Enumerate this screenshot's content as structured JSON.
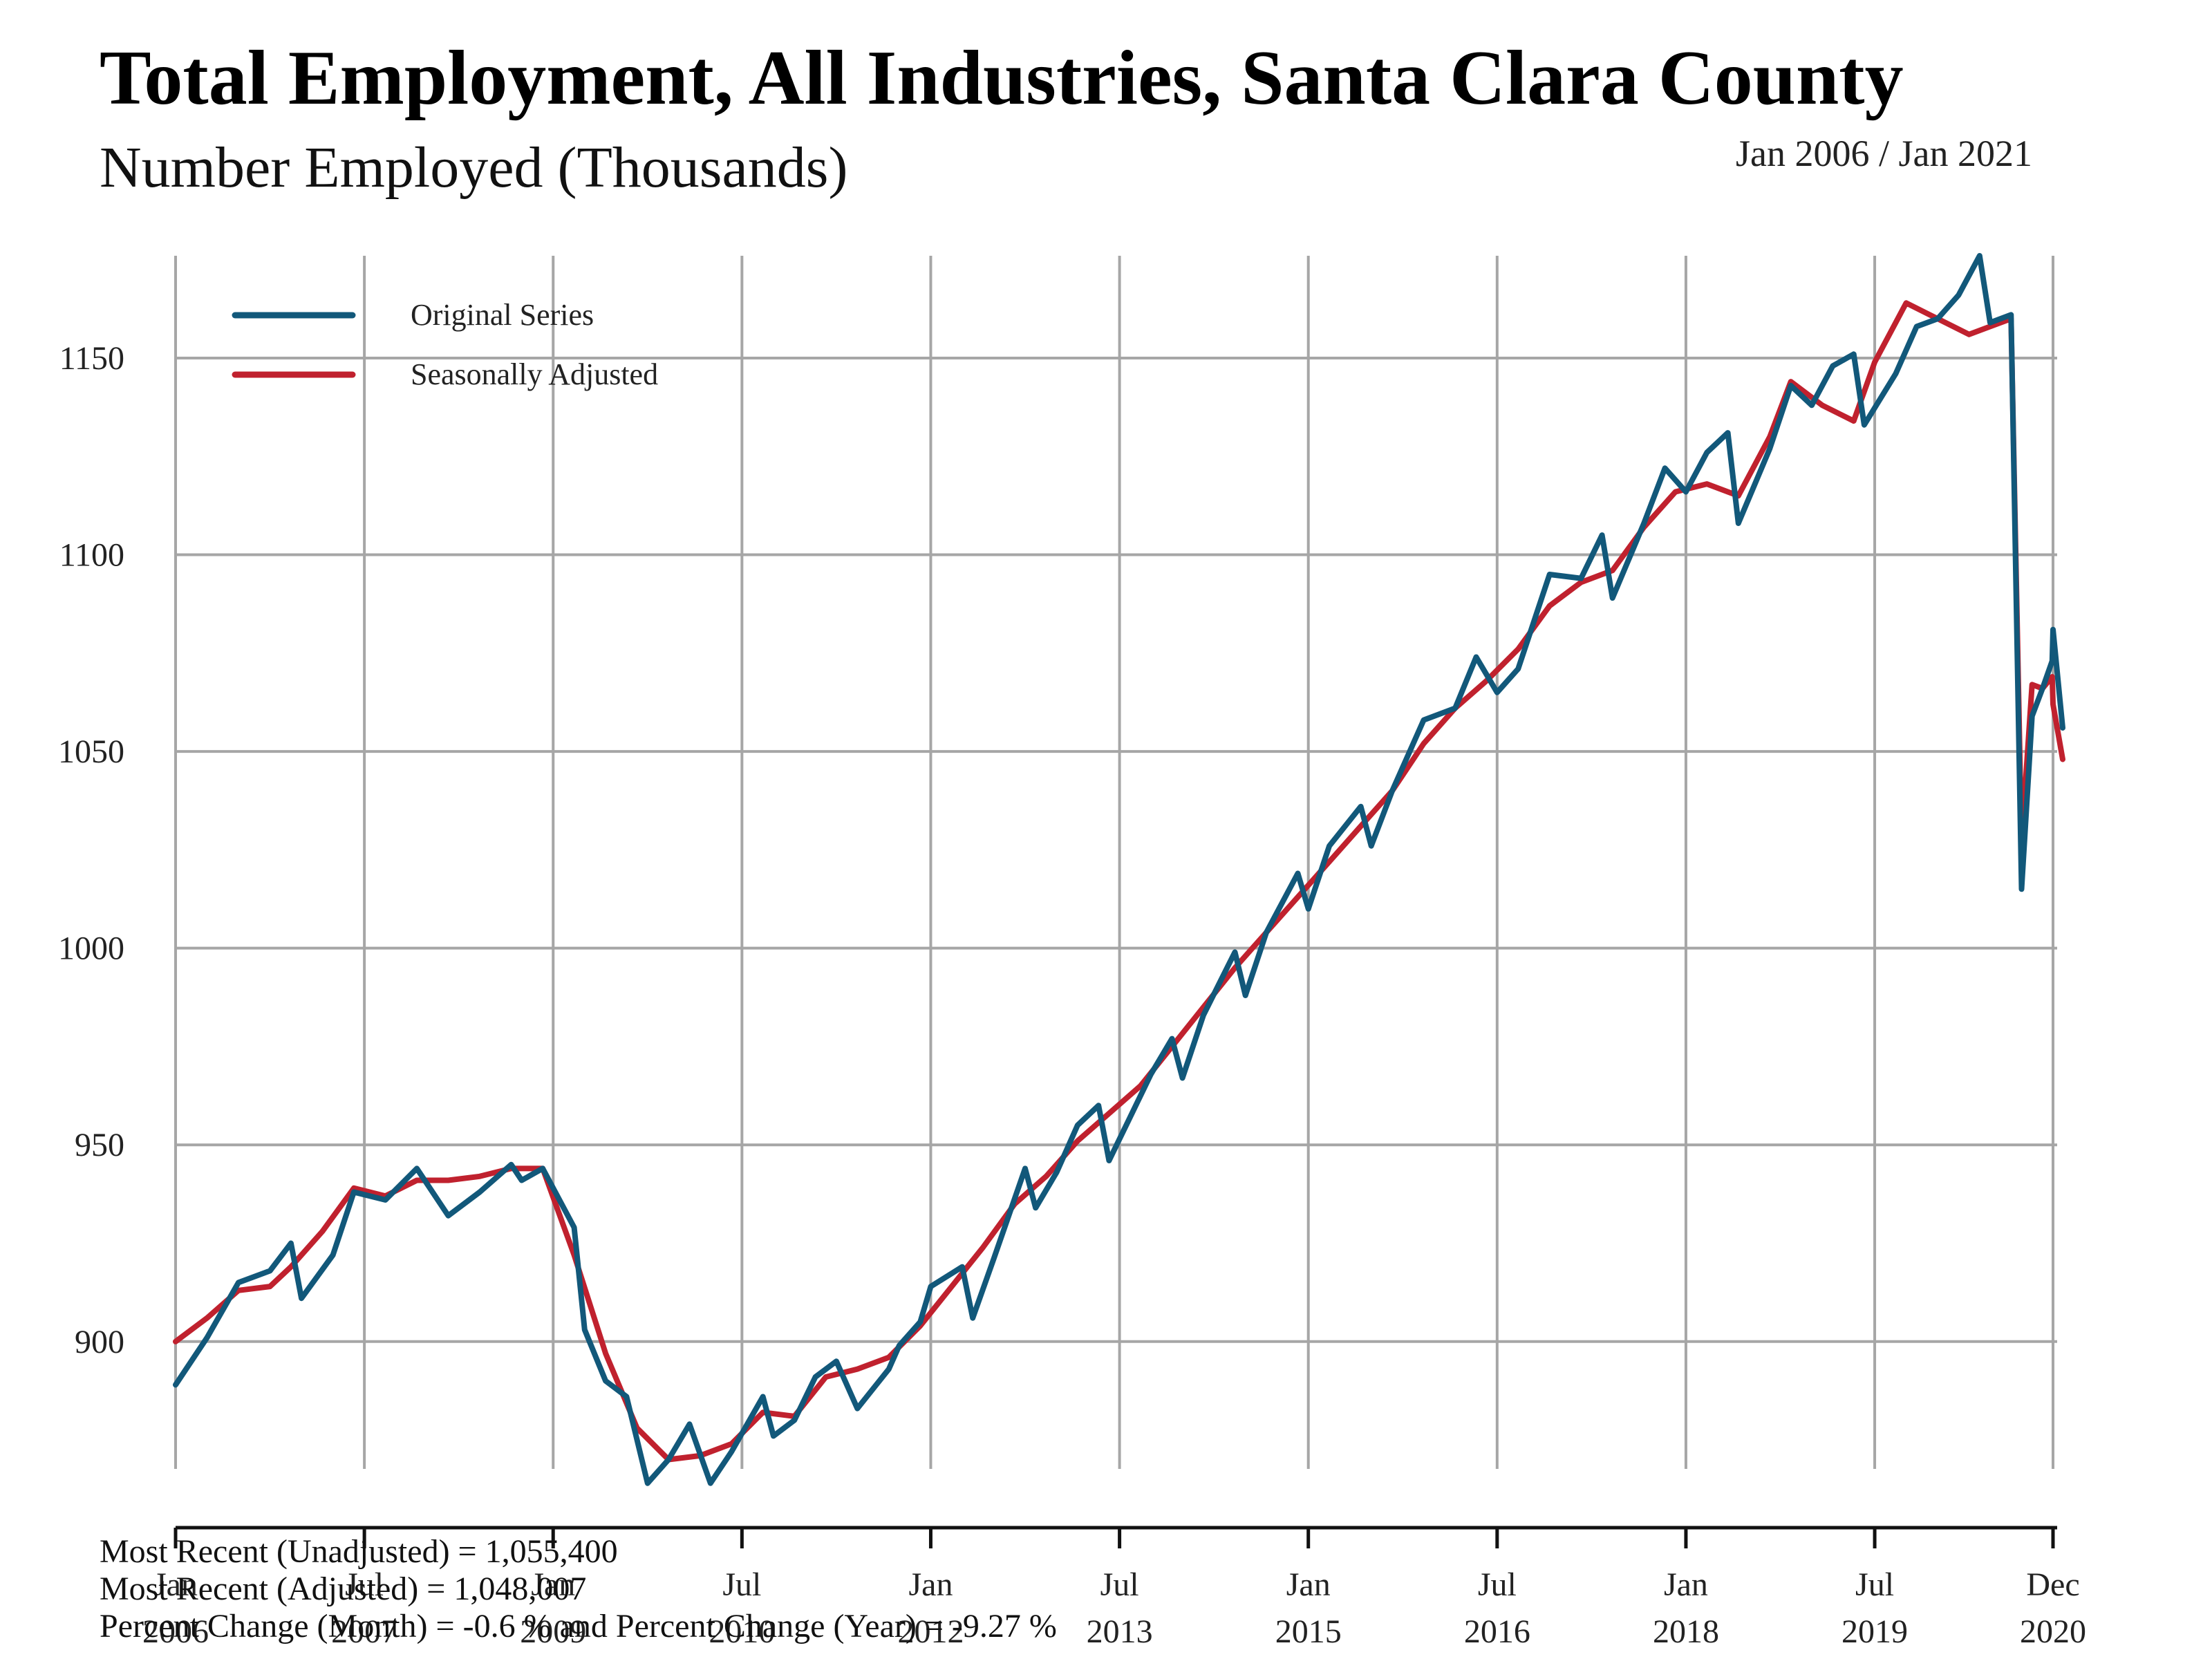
{
  "header": {
    "title": "Total Employment, All Industries, Santa Clara County",
    "subtitle": "Number Employed (Thousands)",
    "date_range": "Jan 2006 / Jan 2021"
  },
  "footer": {
    "line1": "Most Recent (Unadjusted) = 1,055,400",
    "line2": "Most Recent (Adjusted) = 1,048,007",
    "line3": "Percent Change (Month) = -0.6 %  and  Percent Change (Year) = -9.27 %"
  },
  "colors": {
    "original": "#12587a",
    "adjusted": "#c0212e",
    "grid": "#a6a6a6"
  },
  "chart_data": {
    "type": "line",
    "title": "Total Employment, All Industries, Santa Clara County",
    "ylabel": "",
    "xlabel": "",
    "ylim": [
      865,
      1176
    ],
    "xlim": [
      "2006-01",
      "2020-12"
    ],
    "grid": true,
    "legend_position": "top-left",
    "yticks": [
      900,
      950,
      1000,
      1050,
      1100,
      1150
    ],
    "xticks": [
      {
        "date": "2006-01",
        "month": "Jan",
        "year": "2006"
      },
      {
        "date": "2007-07",
        "month": "Jul",
        "year": "2007"
      },
      {
        "date": "2009-01",
        "month": "Jan",
        "year": "2009"
      },
      {
        "date": "2010-07",
        "month": "Jul",
        "year": "2010"
      },
      {
        "date": "2012-01",
        "month": "Jan",
        "year": "2012"
      },
      {
        "date": "2013-07",
        "month": "Jul",
        "year": "2013"
      },
      {
        "date": "2015-01",
        "month": "Jan",
        "year": "2015"
      },
      {
        "date": "2016-07",
        "month": "Jul",
        "year": "2016"
      },
      {
        "date": "2018-01",
        "month": "Jan",
        "year": "2018"
      },
      {
        "date": "2019-07",
        "month": "Jul",
        "year": "2019"
      },
      {
        "date": "2020-12",
        "month": "Dec",
        "year": "2020"
      }
    ],
    "series": [
      {
        "name": "Original Series",
        "color": "#12587a",
        "points": [
          [
            "2006-01",
            889
          ],
          [
            "2006-04",
            901
          ],
          [
            "2006-07",
            915
          ],
          [
            "2006-10",
            918
          ],
          [
            "2006-12",
            925
          ],
          [
            "2007-01",
            911
          ],
          [
            "2007-04",
            922
          ],
          [
            "2007-06",
            938
          ],
          [
            "2007-09",
            936
          ],
          [
            "2007-12",
            944
          ],
          [
            "2008-03",
            932
          ],
          [
            "2008-06",
            938
          ],
          [
            "2008-09",
            945
          ],
          [
            "2008-10",
            941
          ],
          [
            "2008-12",
            944
          ],
          [
            "2009-03",
            929
          ],
          [
            "2009-04",
            903
          ],
          [
            "2009-06",
            890
          ],
          [
            "2009-08",
            886
          ],
          [
            "2009-10",
            864
          ],
          [
            "2009-12",
            870
          ],
          [
            "2010-02",
            879
          ],
          [
            "2010-04",
            864
          ],
          [
            "2010-06",
            872
          ],
          [
            "2010-09",
            886
          ],
          [
            "2010-10",
            876
          ],
          [
            "2010-12",
            880
          ],
          [
            "2011-02",
            891
          ],
          [
            "2011-04",
            895
          ],
          [
            "2011-06",
            883
          ],
          [
            "2011-09",
            893
          ],
          [
            "2011-10",
            899
          ],
          [
            "2011-12",
            905
          ],
          [
            "2012-01",
            914
          ],
          [
            "2012-04",
            919
          ],
          [
            "2012-05",
            906
          ],
          [
            "2012-07",
            921
          ],
          [
            "2012-10",
            944
          ],
          [
            "2012-11",
            934
          ],
          [
            "2013-01",
            943
          ],
          [
            "2013-03",
            955
          ],
          [
            "2013-05",
            960
          ],
          [
            "2013-06",
            946
          ],
          [
            "2013-08",
            957
          ],
          [
            "2013-10",
            968
          ],
          [
            "2013-12",
            977
          ],
          [
            "2014-01",
            967
          ],
          [
            "2014-03",
            983
          ],
          [
            "2014-06",
            999
          ],
          [
            "2014-07",
            988
          ],
          [
            "2014-09",
            1004
          ],
          [
            "2014-12",
            1019
          ],
          [
            "2015-01",
            1010
          ],
          [
            "2015-03",
            1026
          ],
          [
            "2015-06",
            1036
          ],
          [
            "2015-07",
            1026
          ],
          [
            "2015-09",
            1040
          ],
          [
            "2015-12",
            1058
          ],
          [
            "2016-03",
            1061
          ],
          [
            "2016-05",
            1074
          ],
          [
            "2016-07",
            1065
          ],
          [
            "2016-09",
            1071
          ],
          [
            "2016-12",
            1095
          ],
          [
            "2017-03",
            1094
          ],
          [
            "2017-05",
            1105
          ],
          [
            "2017-06",
            1089
          ],
          [
            "2017-09",
            1108
          ],
          [
            "2017-11",
            1122
          ],
          [
            "2018-01",
            1116
          ],
          [
            "2018-03",
            1126
          ],
          [
            "2018-05",
            1131
          ],
          [
            "2018-06",
            1108
          ],
          [
            "2018-09",
            1127
          ],
          [
            "2018-11",
            1143
          ],
          [
            "2019-01",
            1138
          ],
          [
            "2019-03",
            1148
          ],
          [
            "2019-05",
            1151
          ],
          [
            "2019-06",
            1133
          ],
          [
            "2019-09",
            1146
          ],
          [
            "2019-11",
            1158
          ],
          [
            "2020-01",
            1160
          ],
          [
            "2020-03",
            1166
          ],
          [
            "2020-05",
            1176
          ],
          [
            "2020-06",
            1159
          ],
          [
            "2020-08",
            1161
          ],
          [
            "2020-09",
            1015
          ],
          [
            "2020-10",
            1059
          ],
          [
            "2020-11",
            1066
          ],
          [
            "2020-11",
            1073
          ],
          [
            "2020-12",
            1081
          ],
          [
            "2020-12",
            1056
          ]
        ]
      },
      {
        "name": "Seasonally Adjusted",
        "color": "#c0212e",
        "points": [
          [
            "2006-01",
            900
          ],
          [
            "2006-04",
            906
          ],
          [
            "2006-07",
            913
          ],
          [
            "2006-10",
            914
          ],
          [
            "2006-12",
            919
          ],
          [
            "2007-03",
            928
          ],
          [
            "2007-06",
            939
          ],
          [
            "2007-09",
            937
          ],
          [
            "2007-12",
            941
          ],
          [
            "2008-03",
            941
          ],
          [
            "2008-06",
            942
          ],
          [
            "2008-09",
            944
          ],
          [
            "2008-12",
            944
          ],
          [
            "2009-03",
            922
          ],
          [
            "2009-06",
            897
          ],
          [
            "2009-09",
            878
          ],
          [
            "2009-12",
            870
          ],
          [
            "2010-03",
            871
          ],
          [
            "2010-06",
            874
          ],
          [
            "2010-09",
            882
          ],
          [
            "2010-12",
            881
          ],
          [
            "2011-03",
            891
          ],
          [
            "2011-06",
            893
          ],
          [
            "2011-09",
            896
          ],
          [
            "2011-12",
            904
          ],
          [
            "2012-03",
            914
          ],
          [
            "2012-06",
            924
          ],
          [
            "2012-09",
            935
          ],
          [
            "2012-12",
            942
          ],
          [
            "2013-03",
            951
          ],
          [
            "2013-06",
            958
          ],
          [
            "2013-09",
            965
          ],
          [
            "2013-12",
            975
          ],
          [
            "2014-03",
            985
          ],
          [
            "2014-06",
            995
          ],
          [
            "2014-09",
            1004
          ],
          [
            "2014-12",
            1013
          ],
          [
            "2015-03",
            1022
          ],
          [
            "2015-06",
            1031
          ],
          [
            "2015-09",
            1040
          ],
          [
            "2015-12",
            1052
          ],
          [
            "2016-03",
            1061
          ],
          [
            "2016-06",
            1068
          ],
          [
            "2016-09",
            1076
          ],
          [
            "2016-12",
            1087
          ],
          [
            "2017-03",
            1093
          ],
          [
            "2017-06",
            1096
          ],
          [
            "2017-09",
            1107
          ],
          [
            "2017-12",
            1116
          ],
          [
            "2018-03",
            1118
          ],
          [
            "2018-06",
            1115
          ],
          [
            "2018-09",
            1130
          ],
          [
            "2018-11",
            1144
          ],
          [
            "2019-02",
            1138
          ],
          [
            "2019-05",
            1134
          ],
          [
            "2019-07",
            1149
          ],
          [
            "2019-10",
            1164
          ],
          [
            "2020-01",
            1160
          ],
          [
            "2020-04",
            1156
          ],
          [
            "2020-06",
            1158
          ],
          [
            "2020-08",
            1160
          ],
          [
            "2020-09",
            1027
          ],
          [
            "2020-10",
            1067
          ],
          [
            "2020-11",
            1066
          ],
          [
            "2020-11",
            1069
          ],
          [
            "2020-12",
            1062
          ],
          [
            "2020-12",
            1048
          ]
        ]
      }
    ]
  }
}
